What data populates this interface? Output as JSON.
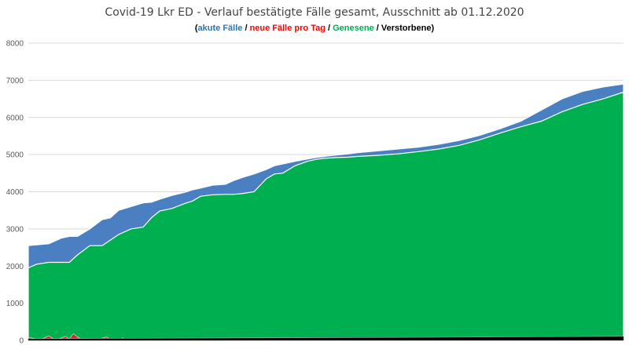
{
  "chart_data": {
    "type": "area",
    "title": "Covid-19 Lkr ED - Verlauf bestätigte Fälle gesamt, Ausschnitt ab 01.12.2020",
    "legend": {
      "open": "(",
      "sep": " / ",
      "close": ")",
      "items": [
        {
          "label": "akute Fälle",
          "color": "#2e75b6"
        },
        {
          "label": "neue Fälle pro Tag",
          "color": "#ff0000"
        },
        {
          "label": "Genesene",
          "color": "#00b050"
        },
        {
          "label": "Verstorbene",
          "color": "#000000"
        }
      ]
    },
    "ylim": [
      0,
      8000
    ],
    "yticks": [
      "0",
      "1000",
      "2000",
      "3000",
      "4000",
      "5000",
      "6000",
      "7000",
      "8000"
    ],
    "xlim": [
      0,
      145
    ],
    "grid": true,
    "colors": {
      "akute": "#4a7fc1",
      "genesene": "#00b050",
      "verstorbene": "#000000",
      "neue": "#e02020"
    },
    "series": [
      {
        "name": "Gesamt",
        "role": "total",
        "x": [
          0,
          5,
          8,
          10,
          12,
          15,
          18,
          20,
          22,
          25,
          28,
          30,
          32,
          35,
          38,
          40,
          42,
          45,
          48,
          50,
          52,
          55,
          58,
          60,
          62,
          65,
          68,
          70,
          72,
          75,
          78,
          80,
          85,
          90,
          95,
          100,
          105,
          110,
          115,
          120,
          125,
          130,
          135,
          140,
          145
        ],
        "values": [
          2550,
          2600,
          2750,
          2800,
          2800,
          3000,
          3250,
          3300,
          3500,
          3600,
          3700,
          3720,
          3800,
          3900,
          3980,
          4050,
          4100,
          4180,
          4200,
          4300,
          4380,
          4480,
          4600,
          4700,
          4750,
          4820,
          4880,
          4920,
          4950,
          4990,
          5020,
          5050,
          5100,
          5150,
          5200,
          5280,
          5380,
          5520,
          5700,
          5900,
          6200,
          6500,
          6700,
          6820,
          6900
        ]
      },
      {
        "name": "Genesene",
        "role": "recovered",
        "x": [
          0,
          2,
          5,
          8,
          10,
          12,
          15,
          18,
          20,
          22,
          25,
          28,
          30,
          32,
          35,
          38,
          40,
          42,
          45,
          48,
          50,
          52,
          55,
          58,
          60,
          62,
          65,
          68,
          70,
          72,
          75,
          78,
          80,
          85,
          90,
          95,
          100,
          105,
          110,
          115,
          120,
          125,
          130,
          135,
          140,
          145
        ],
        "values": [
          1950,
          2050,
          2100,
          2100,
          2100,
          2300,
          2550,
          2550,
          2700,
          2850,
          3000,
          3050,
          3300,
          3480,
          3550,
          3680,
          3750,
          3880,
          3920,
          3930,
          3930,
          3950,
          4000,
          4350,
          4480,
          4500,
          4700,
          4820,
          4870,
          4900,
          4920,
          4930,
          4950,
          4980,
          5020,
          5080,
          5150,
          5250,
          5400,
          5580,
          5750,
          5900,
          6150,
          6350,
          6500,
          6680
        ]
      },
      {
        "name": "Verstorbene",
        "role": "deaths",
        "x": [
          0,
          20,
          40,
          60,
          80,
          100,
          120,
          145
        ],
        "values": [
          45,
          55,
          62,
          70,
          78,
          85,
          95,
          110
        ]
      },
      {
        "name": "neue Fälle pro Tag",
        "role": "daily",
        "x": [
          0,
          1,
          2,
          3,
          4,
          5,
          6,
          7,
          8,
          9,
          10,
          11,
          12,
          13,
          14,
          15,
          16,
          17,
          18,
          19,
          20,
          21,
          22,
          23,
          24,
          25,
          26,
          27,
          28,
          29,
          30,
          35,
          40,
          45,
          50,
          55,
          60,
          65,
          70,
          75,
          80,
          85,
          90,
          95,
          100,
          105,
          110,
          115,
          120,
          125,
          130,
          135,
          140,
          145
        ],
        "values": [
          80,
          60,
          40,
          30,
          70,
          120,
          50,
          30,
          60,
          110,
          40,
          180,
          90,
          30,
          40,
          20,
          25,
          15,
          60,
          90,
          40,
          30,
          20,
          70,
          25,
          20,
          15,
          40,
          30,
          20,
          20,
          25,
          20,
          15,
          20,
          15,
          25,
          20,
          15,
          20,
          25,
          20,
          15,
          20,
          30,
          25,
          35,
          25,
          30,
          40,
          30,
          45,
          35,
          40
        ]
      }
    ]
  }
}
